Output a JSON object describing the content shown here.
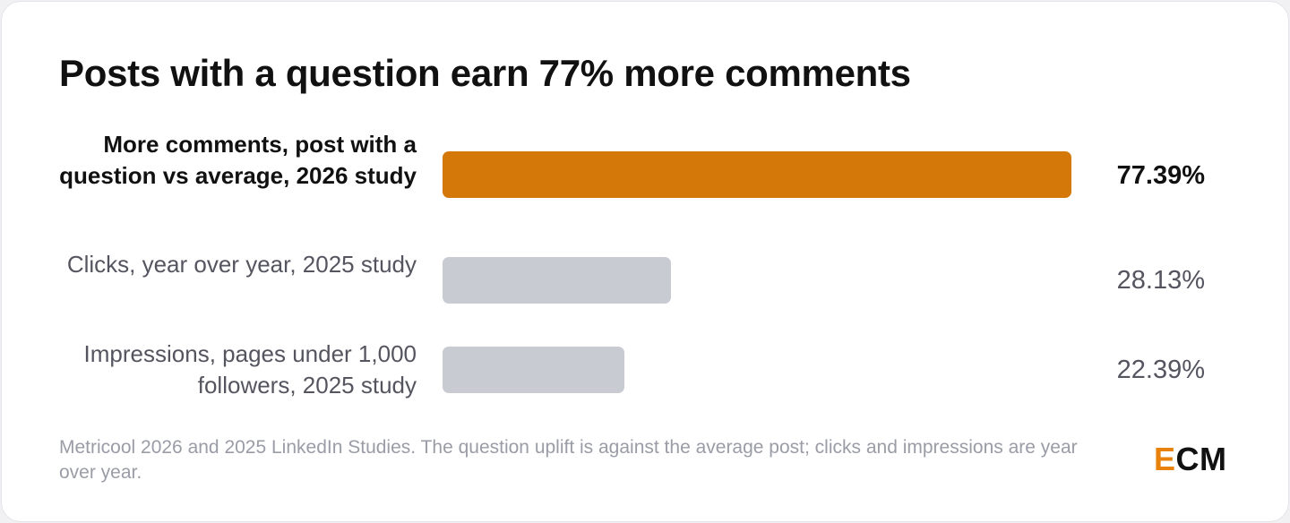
{
  "chart_data": {
    "type": "bar",
    "orientation": "horizontal",
    "title": "Posts with a question earn 77% more comments",
    "categories": [
      "More comments, post with a question vs average, 2026 study",
      "Clicks, year over year, 2025 study",
      "Impressions, pages under 1,000 followers, 2025 study"
    ],
    "values": [
      77.39,
      28.13,
      22.39
    ],
    "value_labels": [
      "77.39%",
      "28.13%",
      "22.39%"
    ],
    "highlight_index": 0,
    "xlim": [
      0,
      77.39
    ],
    "grid": false,
    "colors": {
      "highlight": "#d4780a",
      "default": "#c9cbd3"
    }
  },
  "footnote": "Metricool 2026 and 2025 LinkedIn Studies. The question uplift is against the average post; clicks and impressions are year over year.",
  "logo": {
    "accent_letter": "E",
    "rest": "CM",
    "accent_color": "#e8820c"
  }
}
